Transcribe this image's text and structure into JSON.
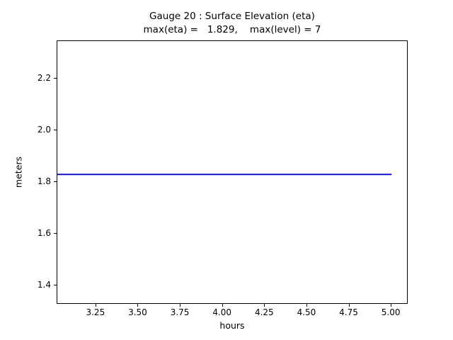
{
  "chart_data": {
    "type": "line",
    "title": "Gauge 20 : Surface Elevation (eta)",
    "subtitle": "max(eta) =   1.829,    max(level) = 7",
    "xlabel": "hours",
    "ylabel": "meters",
    "xlim": [
      3.02,
      5.1
    ],
    "ylim": [
      1.325,
      2.345
    ],
    "x_tick_values": [
      3.25,
      3.5,
      3.75,
      4.0,
      4.25,
      4.5,
      4.75,
      5.0
    ],
    "x_tick_labels": [
      "3.25",
      "3.50",
      "3.75",
      "4.00",
      "4.25",
      "4.50",
      "4.75",
      "5.00"
    ],
    "y_tick_values": [
      1.4,
      1.6,
      1.8,
      2.0,
      2.2
    ],
    "y_tick_labels": [
      "1.4",
      "1.6",
      "1.8",
      "2.0",
      "2.2"
    ],
    "grid": false,
    "legend": "none",
    "series": [
      {
        "name": "eta",
        "color": "#1111cc",
        "line_width": 2,
        "x": [
          3.02,
          5.0
        ],
        "y": [
          1.829,
          1.829
        ]
      }
    ]
  }
}
